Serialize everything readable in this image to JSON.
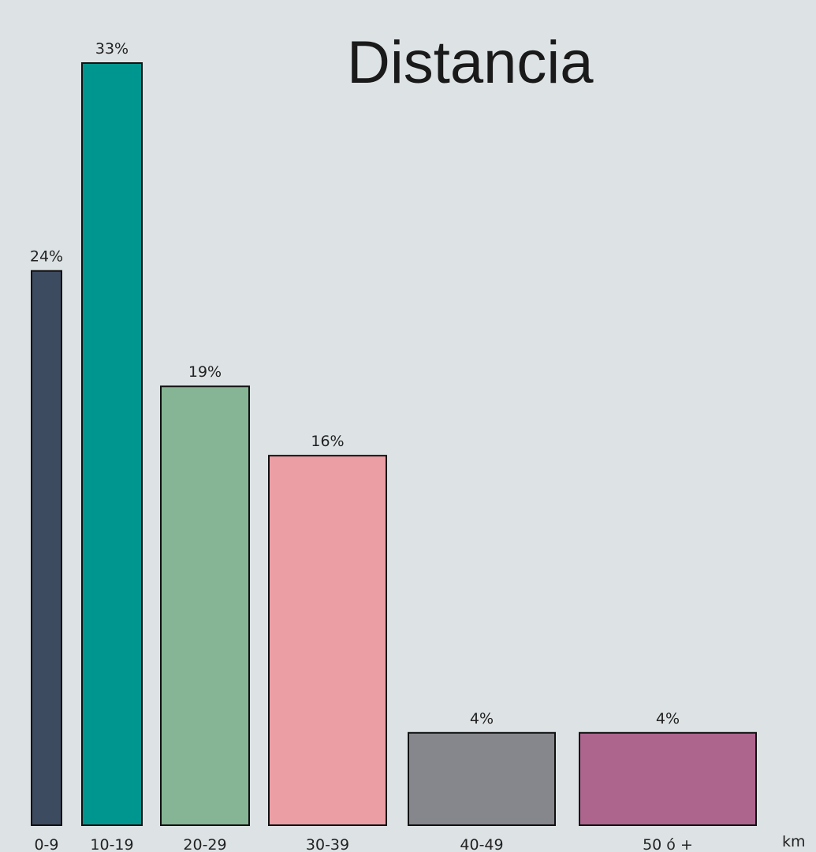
{
  "chart_data": {
    "type": "bar",
    "title": "Distancia",
    "unit_label": "km",
    "categories": [
      "0-9",
      "10-19",
      "20-29",
      "30-39",
      "40-49",
      "50 ó +"
    ],
    "values": [
      24,
      33,
      19,
      16,
      4,
      4
    ],
    "data_labels": [
      "24%",
      "33%",
      "19%",
      "16%",
      "4%",
      "4%"
    ],
    "colors": [
      "#3d4b60",
      "#009690",
      "#85b594",
      "#ec9ea5",
      "#86868d",
      "#ad648d"
    ],
    "ylim": [
      0,
      33
    ],
    "grid": false,
    "legend": "none"
  }
}
